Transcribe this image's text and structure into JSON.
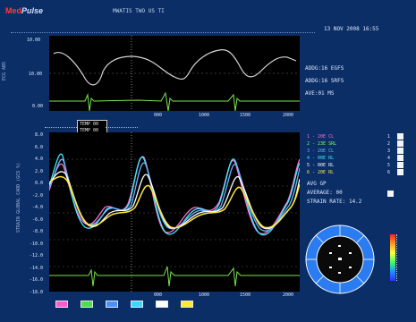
{
  "header": {
    "brand": "Med",
    "brand_tail": "Pulse",
    "title": "MWATIS TWO US TI",
    "date": "13 NOV 2008 16:55"
  },
  "top_panel": {
    "ylabel": "ECG ABS",
    "yticks": [
      "10.00",
      "10.00",
      "0.00"
    ],
    "xticks": [
      "000",
      "1000",
      "1500",
      "2000"
    ],
    "readouts": [
      "ADDG:16 EGFS",
      "ADDG:16 SRFS",
      "AVE:01 MS"
    ]
  },
  "cursor_box": {
    "line1": "TEMP 00",
    "line2": "TEMP 00"
  },
  "main_panel": {
    "ylabel": "STRAIN GLOBAL CARD (GCS %)",
    "yticks": [
      "8.0",
      "6.0",
      "4.0",
      "2.0",
      "0.0",
      "-2.0",
      "-4.0",
      "-6.0",
      "-8.0",
      "-10.0",
      "-12.0",
      "-14.0",
      "-16.0",
      "-18.0"
    ],
    "xticks": [
      "000",
      "1000",
      "1500",
      "2000"
    ]
  },
  "legend": {
    "items": [
      {
        "label": "1 - 20E CL",
        "color": "#ff6fd0"
      },
      {
        "label": "2 - 23E SRL",
        "color": "#7dff5a"
      },
      {
        "label": "3 - 20E CL",
        "color": "#6ab4ff"
      },
      {
        "label": "4 - 00E RL",
        "color": "#40e8ff"
      },
      {
        "label": "5 - 00E RL",
        "color": "#ffffff"
      },
      {
        "label": "6 - 20E RL",
        "color": "#ffe838"
      }
    ],
    "avg_label": "AVG GP",
    "peak_label": "AVERAGE: 00",
    "strain_label": "STRAIN RATE: 14.2"
  },
  "footer_buttons": [
    {
      "color": "#ff5ad0"
    },
    {
      "color": "#49e049"
    },
    {
      "color": "#4a90ff"
    },
    {
      "color": "#39d8ff"
    },
    {
      "color": "#ffffff"
    },
    {
      "color": "#ffe838"
    }
  ],
  "colors": {
    "screen_bg": "#0b2e66",
    "panel_bg": "#000000",
    "ecg": "#78e64e"
  },
  "icons": {
    "bullseye": "bullseye-icon",
    "colorbar": "color-scale-icon"
  }
}
